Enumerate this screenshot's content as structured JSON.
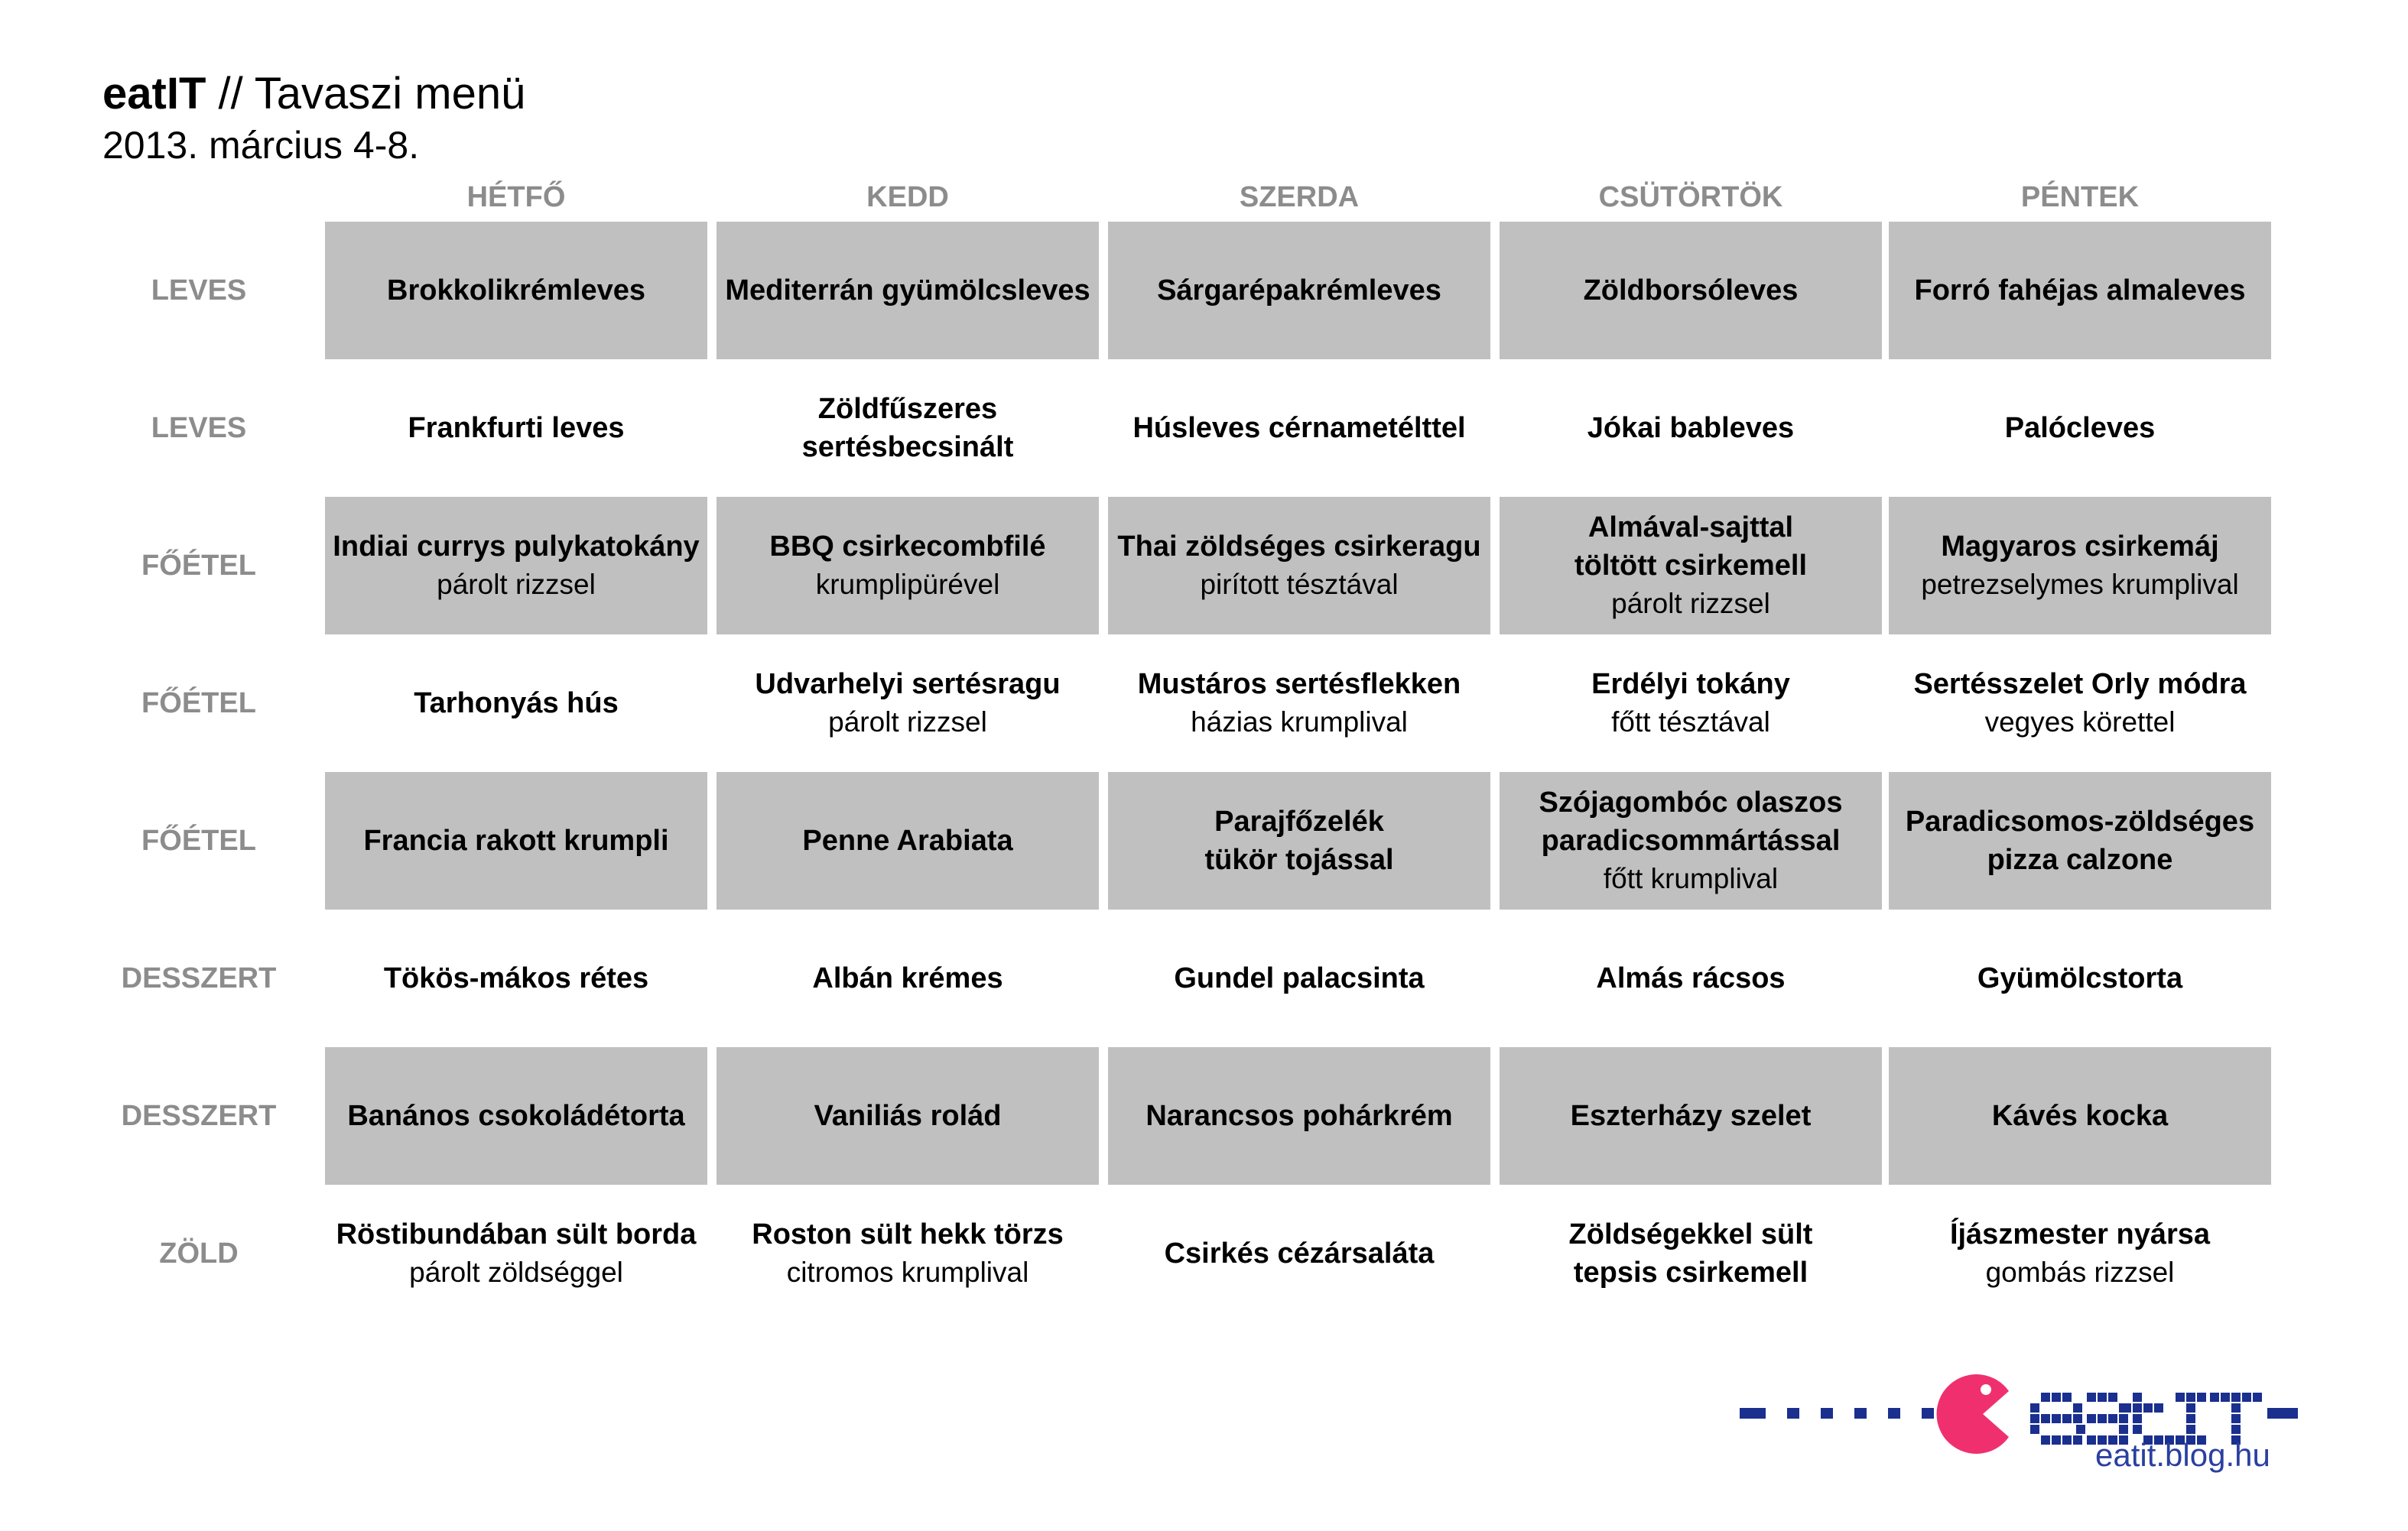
{
  "header": {
    "brand": "eatIT",
    "title_rest": " // Tavaszi menü",
    "subtitle": "2013. március 4-8."
  },
  "days": [
    "HÉTFŐ",
    "KEDD",
    "SZERDA",
    "CSÜTÖRTÖK",
    "PÉNTEK"
  ],
  "rows": [
    {
      "label": "LEVES",
      "shaded": true,
      "cells": [
        {
          "main": "Brokkolikrémleves",
          "side": ""
        },
        {
          "main": "Mediterrán gyümölcsleves",
          "side": ""
        },
        {
          "main": "Sárgarépakrémleves",
          "side": ""
        },
        {
          "main": "Zöldborsóleves",
          "side": ""
        },
        {
          "main": "Forró fahéjas almaleves",
          "side": ""
        }
      ]
    },
    {
      "label": "LEVES",
      "shaded": false,
      "cells": [
        {
          "main": "Frankfurti leves",
          "side": ""
        },
        {
          "main": "Zöldfűszeres\nsertésbecsinált",
          "side": ""
        },
        {
          "main": "Húsleves cérnametélttel",
          "side": ""
        },
        {
          "main": "Jókai bableves",
          "side": ""
        },
        {
          "main": "Palócleves",
          "side": ""
        }
      ]
    },
    {
      "label": "FŐÉTEL",
      "shaded": true,
      "cells": [
        {
          "main": "Indiai currys pulykatokány",
          "side": "párolt rizzsel"
        },
        {
          "main": "BBQ csirkecombfilé",
          "side": "krumplipürével"
        },
        {
          "main": "Thai zöldséges csirkeragu",
          "side": "pirított tésztával"
        },
        {
          "main": "Almával-sajttal\ntöltött csirkemell",
          "side": "párolt rizzsel"
        },
        {
          "main": "Magyaros csirkemáj",
          "side": "petrezselymes krumplival"
        }
      ]
    },
    {
      "label": "FŐÉTEL",
      "shaded": false,
      "cells": [
        {
          "main": "Tarhonyás hús",
          "side": ""
        },
        {
          "main": "Udvarhelyi sertésragu",
          "side": "párolt rizzsel"
        },
        {
          "main": "Mustáros sertésflekken",
          "side": "házias krumplival"
        },
        {
          "main": "Erdélyi tokány",
          "side": "főtt tésztával"
        },
        {
          "main": "Sertésszelet Orly módra",
          "side": "vegyes körettel"
        }
      ]
    },
    {
      "label": "FŐÉTEL",
      "shaded": true,
      "cells": [
        {
          "main": "Francia rakott krumpli",
          "side": ""
        },
        {
          "main": "Penne Arabiata",
          "side": ""
        },
        {
          "main": "Parajfőzelék\ntükör tojással",
          "side": ""
        },
        {
          "main": "Szójagombóc olaszos\nparadicsommártással",
          "side": "főtt krumplival"
        },
        {
          "main": "Paradicsomos-zöldséges\npizza calzone",
          "side": ""
        }
      ]
    },
    {
      "label": "DESSZERT",
      "shaded": false,
      "cells": [
        {
          "main": "Tökös-mákos rétes",
          "side": ""
        },
        {
          "main": "Albán krémes",
          "side": ""
        },
        {
          "main": "Gundel palacsinta",
          "side": ""
        },
        {
          "main": "Almás rácsos",
          "side": ""
        },
        {
          "main": "Gyümölcstorta",
          "side": ""
        }
      ]
    },
    {
      "label": "DESSZERT",
      "shaded": true,
      "cells": [
        {
          "main": "Banános csokoládétorta",
          "side": ""
        },
        {
          "main": "Vaniliás rolád",
          "side": ""
        },
        {
          "main": "Narancsos pohárkrém",
          "side": ""
        },
        {
          "main": "Eszterházy szelet",
          "side": ""
        },
        {
          "main": "Kávés kocka",
          "side": ""
        }
      ]
    },
    {
      "label": "ZÖLD",
      "shaded": false,
      "cells": [
        {
          "main": "Röstibundában sült borda",
          "side": "párolt zöldséggel"
        },
        {
          "main": "Roston sült hekk törzs",
          "side": "citromos krumplival"
        },
        {
          "main": "Csirkés cézársaláta",
          "side": ""
        },
        {
          "main": "Zöldségekkel sült\ntepsis csirkemell",
          "side": ""
        },
        {
          "main": "Íjászmester nyársa",
          "side": "gombás rizzsel"
        }
      ]
    }
  ],
  "logo": {
    "wordmark": "eat IT",
    "url": "eatit.blog.hu",
    "colors": {
      "blue": "#1b2f8f",
      "pink": "#f0306e",
      "url": "#2a3fa0"
    }
  },
  "colors": {
    "cell_bg": "#c0c0c0",
    "label": "#8c8c8c"
  }
}
